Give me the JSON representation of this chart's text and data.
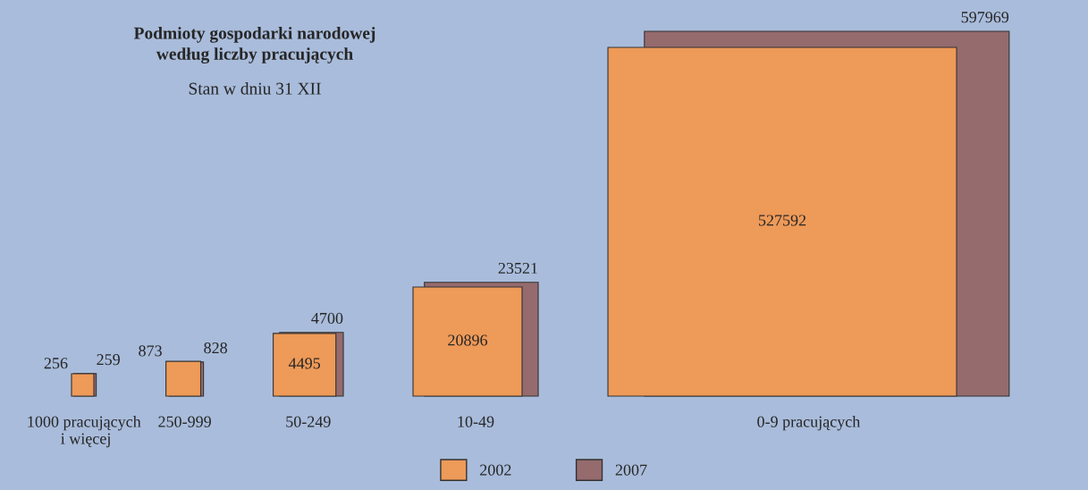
{
  "chart_data": {
    "type": "other",
    "title": "Podmioty gospodarki narodowej\nwedług liczby pracujących",
    "subtitle": "Stan w dniu 31 XII",
    "categories": [
      "1000 pracujących\n i więcej",
      "250-999",
      "50-249",
      "10-49",
      "0-9 pracujących"
    ],
    "series": [
      {
        "name": "2002",
        "color": "#ee9a58",
        "values": [
          256,
          873,
          4495,
          20896,
          527592
        ]
      },
      {
        "name": "2007",
        "color": "#956b6e",
        "values": [
          259,
          828,
          4700,
          23521,
          597969
        ]
      }
    ],
    "data_labels": true,
    "legend": "bottom"
  }
}
